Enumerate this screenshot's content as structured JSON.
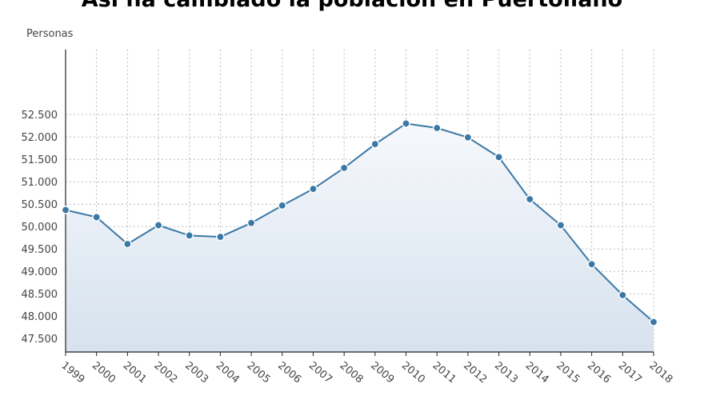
{
  "chart_data": {
    "type": "area",
    "title": "Así ha cambiado la población en Puertollano",
    "ylabel": "Personas",
    "xlabel": "",
    "categories": [
      "1999",
      "2000",
      "2001",
      "2002",
      "2003",
      "2004",
      "2005",
      "2006",
      "2007",
      "2008",
      "2009",
      "2010",
      "2011",
      "2012",
      "2013",
      "2014",
      "2015",
      "2016",
      "2017",
      "2018"
    ],
    "series": [
      {
        "values": [
          50370,
          50210,
          49610,
          50030,
          49800,
          49770,
          50080,
          50470,
          50840,
          51310,
          51840,
          52300,
          52200,
          51990,
          51550,
          50610,
          50030,
          49160,
          48470,
          47870
        ]
      }
    ],
    "y_ticks": [
      "47.500",
      "48.000",
      "48.500",
      "49.000",
      "49.500",
      "50.000",
      "50.500",
      "51.000",
      "51.500",
      "52.000",
      "52.500"
    ],
    "y_tick_values": [
      47500,
      48000,
      48500,
      49000,
      49500,
      50000,
      50500,
      51000,
      51500,
      52000,
      52500
    ],
    "ylim": [
      47200,
      53950
    ],
    "grid": true,
    "colors": {
      "line": "#3a78a6",
      "marker": "#3a78a6",
      "marker_stroke": "#ffffff",
      "fill_top": "#f6f8fc",
      "fill_bottom": "#d6e2ee",
      "grid": "#b8b8b8"
    }
  }
}
